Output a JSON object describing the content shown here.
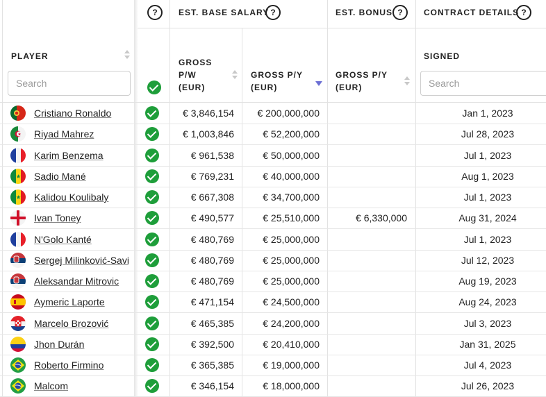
{
  "headers": {
    "base_salary": "EST. BASE SALARY",
    "bonus": "EST. BONUS",
    "contract": "CONTRACT DETAILS",
    "help": "?",
    "player": "PLAYER",
    "gross_pw": [
      "GROSS",
      "P/W",
      "(EUR)"
    ],
    "gross_py": [
      "GROSS P/Y",
      "(EUR)"
    ],
    "bonus_py": [
      "GROSS P/Y",
      "(EUR)"
    ],
    "signed": "SIGNED"
  },
  "search": {
    "player_placeholder": "Search",
    "signed_placeholder": "Search"
  },
  "colors": {
    "check": "#1e9e3a",
    "sort_active": "#6b6fd4"
  },
  "rows": [
    {
      "name": "Cristiano Ronaldo",
      "flag": "portugal",
      "pw": "€ 3,846,154",
      "py": "€ 200,000,000",
      "bonus": "",
      "signed": "Jan 1, 2023"
    },
    {
      "name": "Riyad Mahrez",
      "flag": "algeria",
      "pw": "€ 1,003,846",
      "py": "€ 52,200,000",
      "bonus": "",
      "signed": "Jul 28, 2023"
    },
    {
      "name": "Karim Benzema",
      "flag": "france",
      "pw": "€ 961,538",
      "py": "€ 50,000,000",
      "bonus": "",
      "signed": "Jul 1, 2023"
    },
    {
      "name": "Sadio Mané",
      "flag": "senegal",
      "pw": "€ 769,231",
      "py": "€ 40,000,000",
      "bonus": "",
      "signed": "Aug 1, 2023"
    },
    {
      "name": "Kalidou Koulibaly",
      "flag": "senegal",
      "pw": "€ 667,308",
      "py": "€ 34,700,000",
      "bonus": "",
      "signed": "Jul 1, 2023"
    },
    {
      "name": "Ivan Toney",
      "flag": "england",
      "pw": "€ 490,577",
      "py": "€ 25,510,000",
      "bonus": "€ 6,330,000",
      "signed": "Aug 31, 2024"
    },
    {
      "name": "N'Golo Kanté",
      "flag": "france",
      "pw": "€ 480,769",
      "py": "€ 25,000,000",
      "bonus": "",
      "signed": "Jul 1, 2023"
    },
    {
      "name": "Sergej Milinković-Savić",
      "flag": "serbia",
      "pw": "€ 480,769",
      "py": "€ 25,000,000",
      "bonus": "",
      "signed": "Jul 12, 2023"
    },
    {
      "name": "Aleksandar Mitrovic",
      "flag": "serbia",
      "pw": "€ 480,769",
      "py": "€ 25,000,000",
      "bonus": "",
      "signed": "Aug 19, 2023"
    },
    {
      "name": "Aymeric Laporte",
      "flag": "spain",
      "pw": "€ 471,154",
      "py": "€ 24,500,000",
      "bonus": "",
      "signed": "Aug 24, 2023"
    },
    {
      "name": "Marcelo Brozović",
      "flag": "croatia",
      "pw": "€ 465,385",
      "py": "€ 24,200,000",
      "bonus": "",
      "signed": "Jul 3, 2023"
    },
    {
      "name": "Jhon Durán",
      "flag": "colombia",
      "pw": "€ 392,500",
      "py": "€ 20,410,000",
      "bonus": "",
      "signed": "Jan 31, 2025"
    },
    {
      "name": "Roberto Firmino",
      "flag": "brazil",
      "pw": "€ 365,385",
      "py": "€ 19,000,000",
      "bonus": "",
      "signed": "Jul 4, 2023"
    },
    {
      "name": "Malcom",
      "flag": "brazil",
      "pw": "€ 346,154",
      "py": "€ 18,000,000",
      "bonus": "",
      "signed": "Jul 26, 2023"
    }
  ]
}
